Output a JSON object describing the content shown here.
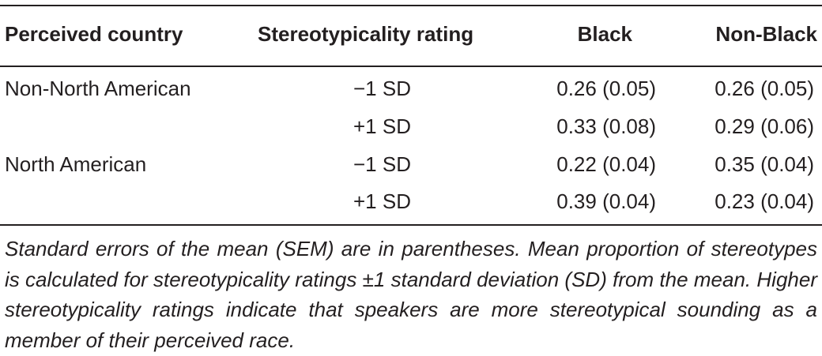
{
  "table": {
    "headers": {
      "country": "Perceived country",
      "rating": "Stereotypicality rating",
      "black": "Black",
      "non_black": "Non-Black"
    },
    "rows": [
      {
        "country": "Non-North American",
        "rating": "−1 SD",
        "black": "0.26 (0.05)",
        "non_black": "0.26 (0.05)"
      },
      {
        "country": "",
        "rating": "+1 SD",
        "black": "0.33 (0.08)",
        "non_black": "0.29 (0.06)"
      },
      {
        "country": "North American",
        "rating": "−1 SD",
        "black": "0.22 (0.04)",
        "non_black": "0.35 (0.04)"
      },
      {
        "country": "",
        "rating": "+1 SD",
        "black": "0.39 (0.04)",
        "non_black": "0.23 (0.04)"
      }
    ]
  },
  "footnote": "Standard errors of the mean (SEM) are in parentheses. Mean proportion of stereo­types is calculated for stereotypicality ratings ±1 standard deviation (SD) from the mean. Higher stereotypicality ratings indicate that speakers are more stereotypical sounding as a member of their perceived race."
}
